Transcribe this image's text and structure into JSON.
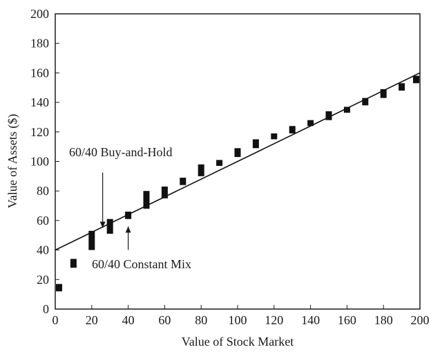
{
  "chart_data": {
    "type": "scatter",
    "xlabel": "Value of Stock Market",
    "ylabel": "Value of Assets ($)",
    "xlim": [
      0,
      200
    ],
    "ylim": [
      0,
      200
    ],
    "x_ticks": [
      0,
      20,
      40,
      60,
      80,
      100,
      120,
      140,
      160,
      180,
      200
    ],
    "y_ticks": [
      0,
      20,
      40,
      60,
      80,
      100,
      120,
      140,
      160,
      180,
      200
    ],
    "grid": false,
    "colors": {
      "marks": "#111111",
      "axis": "#1a1a1a"
    },
    "series": [
      {
        "style": "line",
        "x": [
          0,
          200
        ],
        "y": [
          40,
          160
        ]
      },
      {
        "style": "range-bar",
        "x": [
          0,
          10,
          20,
          30,
          40,
          50,
          60,
          70,
          80,
          90,
          100,
          110,
          120,
          130,
          140,
          150,
          160,
          170,
          180,
          190,
          200
        ],
        "y_low": [
          12,
          28,
          40,
          51,
          61,
          68,
          75,
          84,
          90,
          97,
          103,
          109,
          115,
          119,
          124,
          128,
          133,
          138,
          143,
          148,
          153
        ],
        "y_high": [
          17,
          34,
          53,
          61,
          66,
          80,
          83,
          89,
          98,
          101,
          109,
          115,
          119,
          124,
          128,
          134,
          137,
          143,
          149,
          153,
          158
        ]
      }
    ],
    "annotations": [
      {
        "text": "60/40 Buy-and-Hold",
        "points_to": [
          26,
          55
        ],
        "direction": "down"
      },
      {
        "text": "60/40 Constant Mix",
        "points_to": [
          40,
          56
        ],
        "direction": "up"
      }
    ]
  }
}
